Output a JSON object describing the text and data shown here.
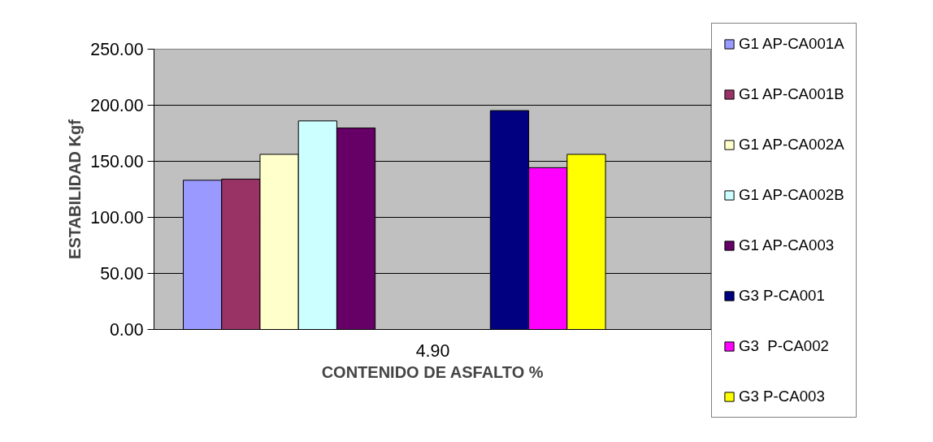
{
  "chart_data": {
    "type": "bar",
    "xlabel": "CONTENIDO DE ASFALTO %",
    "ylabel": "ESTABILIDAD Kgf",
    "categories": [
      "4.90"
    ],
    "series": [
      {
        "name": "G1 AP-CA001A",
        "color": "#9999ff",
        "values": [
          133.1
        ]
      },
      {
        "name": "G1 AP-CA001B",
        "color": "#993366",
        "values": [
          134.1
        ]
      },
      {
        "name": "G1 AP-CA002A",
        "color": "#ffffcc",
        "values": [
          156.2
        ]
      },
      {
        "name": "G1 AP-CA002B",
        "color": "#ccffff",
        "values": [
          186.0
        ]
      },
      {
        "name": "G1 AP-CA003",
        "color": "#660066",
        "values": [
          179.7
        ]
      },
      {
        "values": [
          null
        ]
      },
      {
        "values": [
          null
        ]
      },
      {
        "values": [
          null
        ]
      },
      {
        "name": "G3 P-CA001",
        "color": "#000080",
        "values": [
          195.2
        ]
      },
      {
        "name": "G3  P-CA002",
        "color": "#ff00ff",
        "values": [
          144.3
        ]
      },
      {
        "name": "G3 P-CA003",
        "color": "#ffff00",
        "values": [
          156.2
        ]
      },
      {
        "values": [
          null
        ]
      },
      {
        "values": [
          null
        ]
      }
    ],
    "ylim": [
      0,
      250
    ],
    "yticks": [
      {
        "value": 0,
        "label": "0.00"
      },
      {
        "value": 50,
        "label": "50.00"
      },
      {
        "value": 100,
        "label": "100.00"
      },
      {
        "value": 150,
        "label": "150.00"
      },
      {
        "value": 200,
        "label": "200.00"
      },
      {
        "value": 250,
        "label": "250.00"
      }
    ],
    "grid": "y",
    "legend": "right"
  }
}
